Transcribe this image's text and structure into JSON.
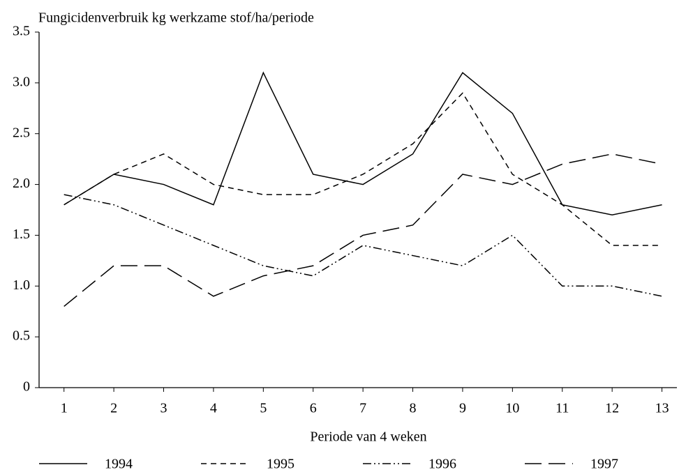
{
  "chart_data": {
    "type": "line",
    "title": "Fungicidenverbruik kg werkzame stof/ha/periode",
    "xlabel": "Periode van 4 weken",
    "x": [
      1,
      2,
      3,
      4,
      5,
      6,
      7,
      8,
      9,
      10,
      11,
      12,
      13
    ],
    "xlim": [
      0.5,
      13.3
    ],
    "xticks": [
      1,
      2,
      3,
      4,
      5,
      6,
      7,
      8,
      9,
      10,
      11,
      12,
      13
    ],
    "ylim": [
      0,
      3.5
    ],
    "yticks": [
      0,
      0.5,
      {
        "value": 1,
        "label": "1.0"
      },
      1.5,
      {
        "value": 2,
        "label": "2.0"
      },
      2.5,
      {
        "value": 3,
        "label": "3.0"
      },
      3.5
    ],
    "grid": false,
    "legend": "bottom",
    "series": [
      {
        "name": "1994",
        "color": "#000000",
        "style": "solid",
        "values": [
          1.8,
          2.1,
          2.0,
          1.8,
          3.1,
          2.1,
          2.0,
          2.3,
          3.1,
          2.7,
          1.8,
          1.7,
          1.8
        ]
      },
      {
        "name": "1995",
        "color": "#000000",
        "style": "dashed",
        "values": [
          1.8,
          2.1,
          2.3,
          2.0,
          1.9,
          1.9,
          2.1,
          2.4,
          2.9,
          2.1,
          1.8,
          1.4,
          1.4
        ]
      },
      {
        "name": "1996",
        "color": "#000000",
        "style": "dashdotdot",
        "values": [
          1.9,
          1.8,
          1.6,
          1.4,
          1.2,
          1.1,
          1.4,
          1.3,
          1.2,
          1.5,
          1.0,
          1.0,
          0.9
        ]
      },
      {
        "name": "1997",
        "color": "#000000",
        "style": "longdash",
        "values": [
          0.8,
          1.2,
          1.2,
          0.9,
          1.1,
          1.2,
          1.5,
          1.6,
          2.1,
          2.0,
          2.2,
          2.3,
          2.2
        ]
      }
    ]
  }
}
